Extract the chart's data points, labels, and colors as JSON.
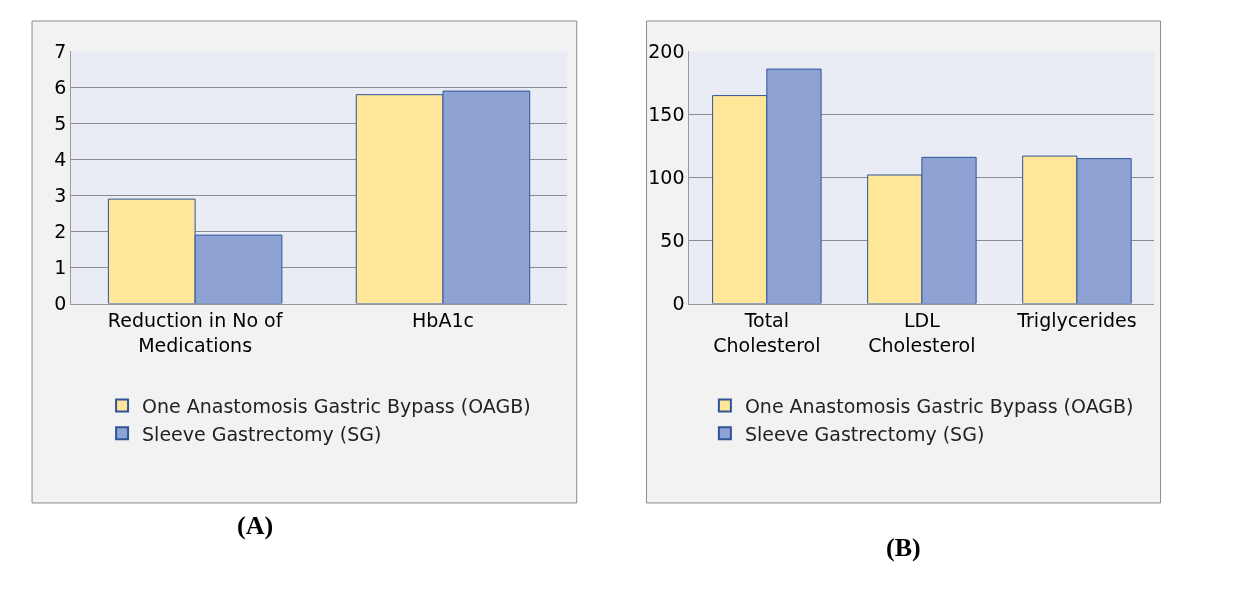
{
  "chart_data": [
    {
      "type": "bar",
      "categories": [
        "Reduction in No of Medications",
        "HbA1c"
      ],
      "series": [
        {
          "name": "One Anastomosis Gastric Bypass (OAGB)",
          "color": "#ffe699",
          "values": [
            2.9,
            5.8
          ]
        },
        {
          "name": "Sleeve Gastrectomy (SG)",
          "color": "#8ea3d4",
          "values": [
            1.9,
            5.9
          ]
        }
      ],
      "ylim": [
        0,
        7
      ],
      "yticks": [
        0,
        1,
        2,
        3,
        4,
        5,
        6,
        7
      ],
      "grid": "y",
      "legend": "bottom",
      "annotations": [
        "(A)"
      ]
    },
    {
      "type": "bar",
      "categories": [
        "Total Cholesterol",
        "LDL Cholesterol",
        "Triglycerides"
      ],
      "series": [
        {
          "name": "One Anastomosis Gastric Bypass (OAGB)",
          "color": "#ffe699",
          "values": [
            165,
            102,
            117
          ]
        },
        {
          "name": "Sleeve Gastrectomy (SG)",
          "color": "#8ea3d4",
          "values": [
            186,
            116,
            115
          ]
        }
      ],
      "ylim": [
        0,
        200
      ],
      "yticks": [
        0,
        50,
        100,
        150,
        200
      ],
      "grid": "y",
      "legend": "bottom",
      "annotations": [
        "(B)"
      ]
    }
  ]
}
